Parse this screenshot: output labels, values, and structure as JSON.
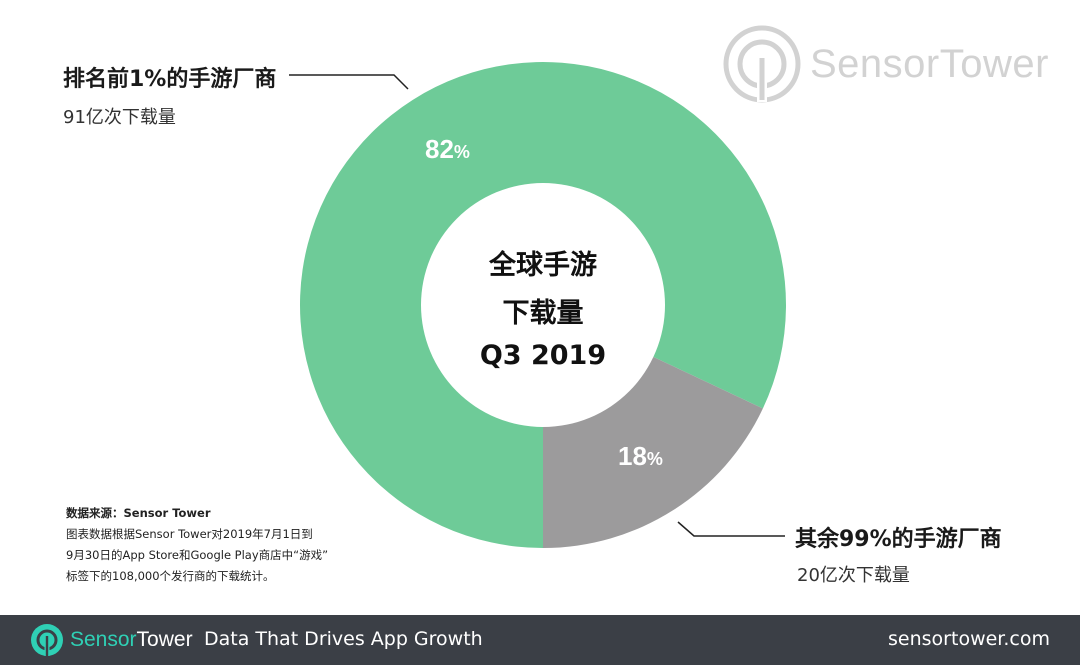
{
  "chart_data": {
    "type": "pie",
    "title": "全球手游下载量",
    "subtitle": "Q3 2019",
    "slices": [
      {
        "label": "排名前1%的手游厂商",
        "detail": "91亿次下载量",
        "value": 82,
        "display": "82",
        "color": "#6ecb98"
      },
      {
        "label": "其余99%的手游厂商",
        "detail": "20亿次下载量",
        "value": 18,
        "display": "18",
        "color": "#9c9b9c"
      }
    ],
    "percent_symbol": "%"
  },
  "center": {
    "line1": "全球手游",
    "line2": "下载量",
    "line3": "Q3 2019"
  },
  "callouts": {
    "top": {
      "title": "排名前1%的手游厂商",
      "sub": "91亿次下载量"
    },
    "bottom": {
      "title": "其余99%的手游厂商",
      "sub": "20亿次下载量"
    }
  },
  "source": {
    "title": "数据来源：Sensor Tower",
    "line1": "图表数据根据Sensor Tower对2019年7月1日到",
    "line2": "9月30日的App Store和Google Play商店中“游戏”",
    "line3": "标签下的108,000个发行商的下载统计。"
  },
  "logo_top": {
    "text": "SensorTower",
    "color": "#d2d2d2"
  },
  "footer": {
    "brand_a": "Sensor",
    "brand_b": "Tower",
    "tagline": "Data That Drives App Growth",
    "site": "sensortower.com",
    "accent": "#2fd0b5",
    "bg": "#3b3f46"
  }
}
